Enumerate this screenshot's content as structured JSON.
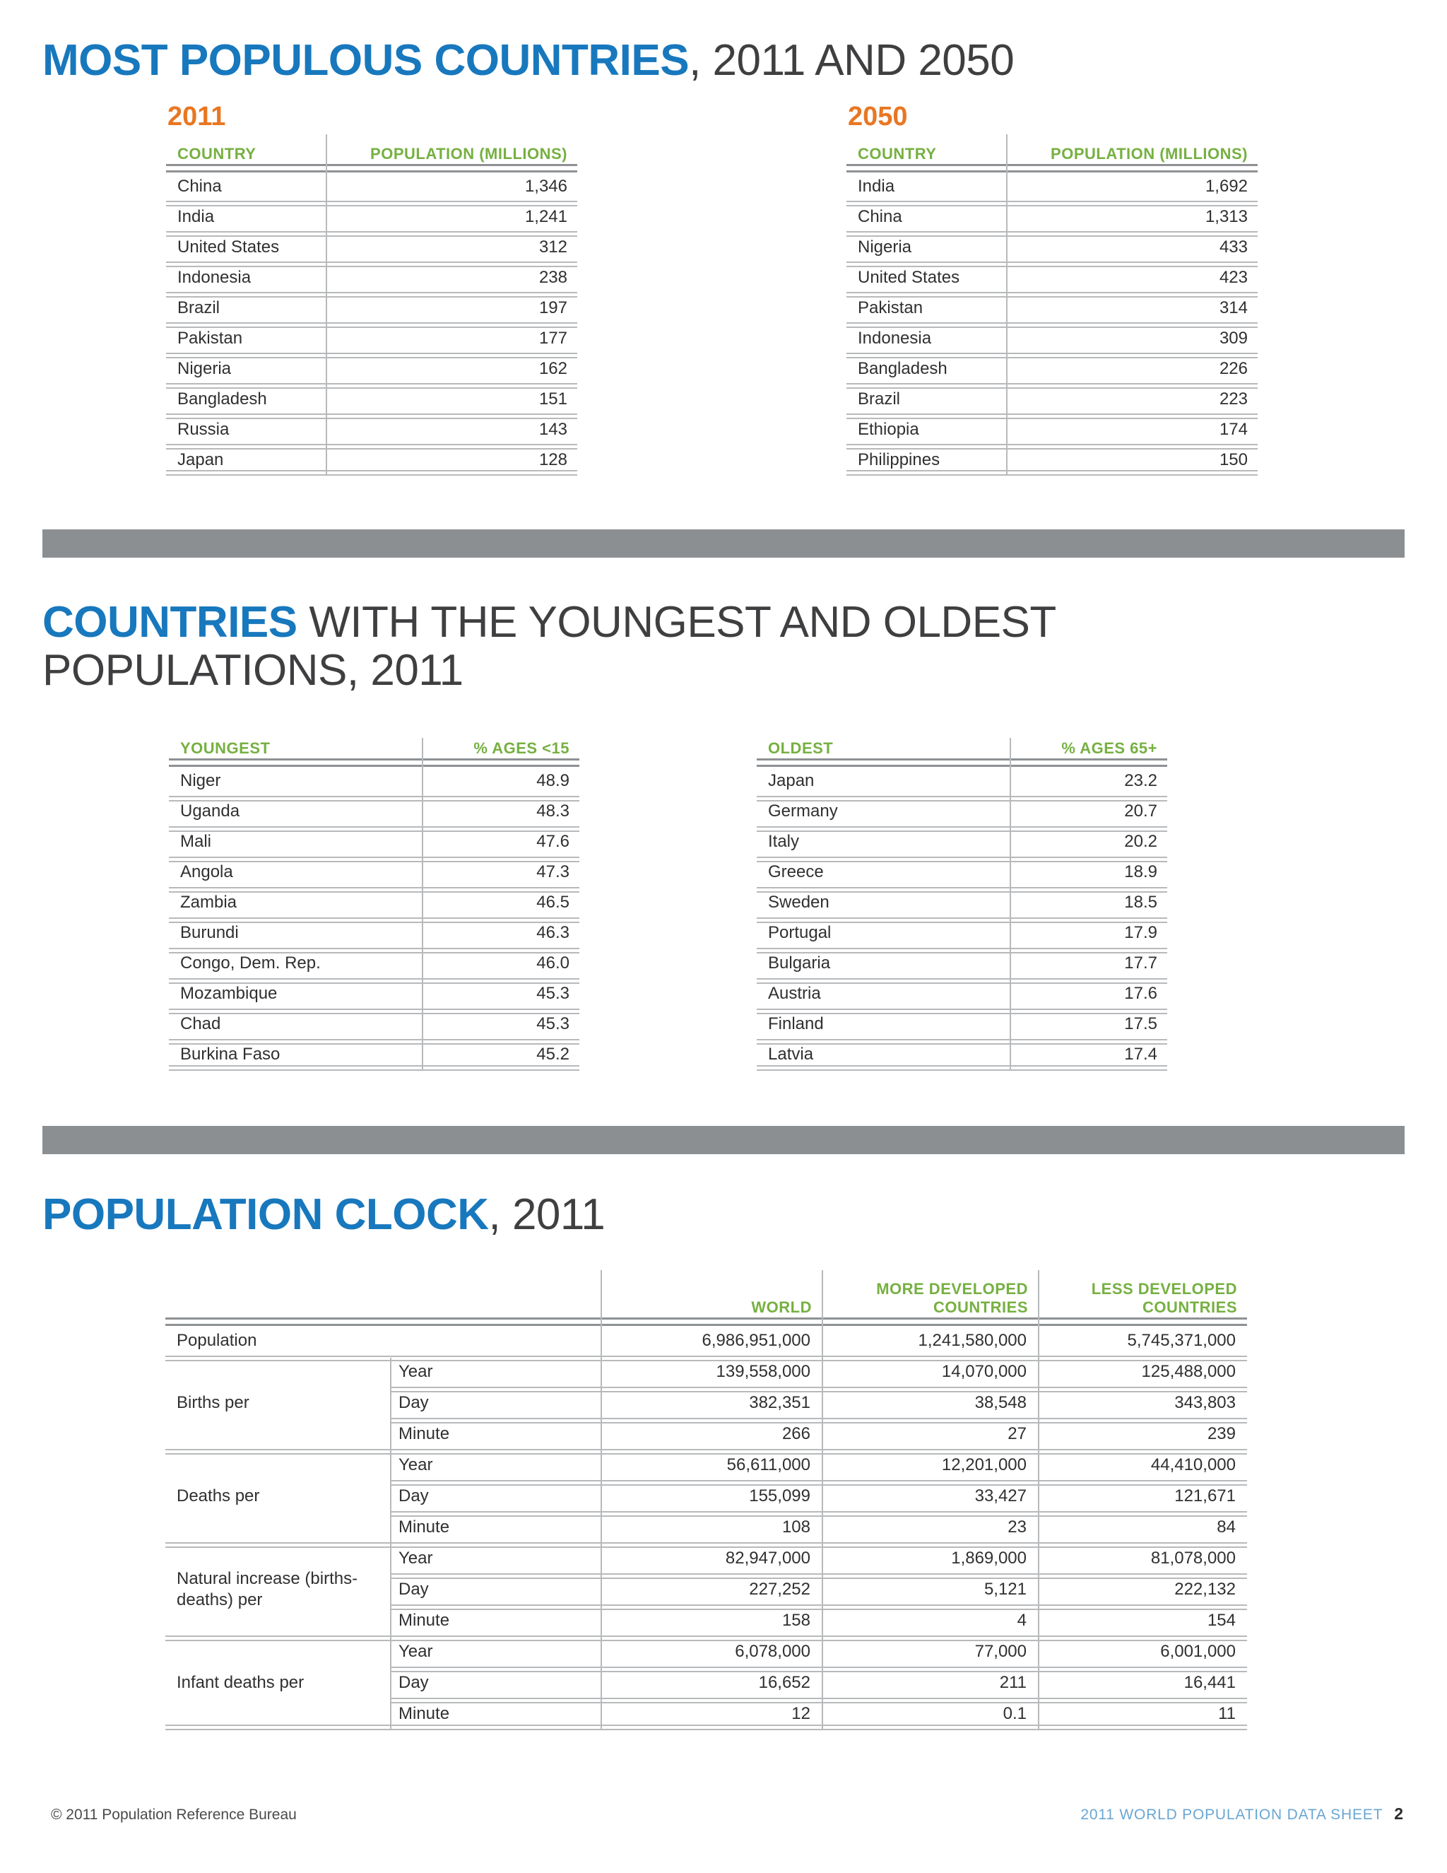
{
  "colors": {
    "title_blue": "#1878bd",
    "accent_orange": "#e87722",
    "header_green": "#76b041",
    "divider_gray": "#8b8f92",
    "footer_blue": "#6aa7d3"
  },
  "section1": {
    "title_strong": "MOST POPULOUS COUNTRIES",
    "title_rest": ", 2011 AND 2050",
    "tables": [
      {
        "year": "2011",
        "col1": "COUNTRY",
        "col2": "POPULATION (MILLIONS)",
        "rows": [
          [
            "China",
            "1,346"
          ],
          [
            "India",
            "1,241"
          ],
          [
            "United States",
            "312"
          ],
          [
            "Indonesia",
            "238"
          ],
          [
            "Brazil",
            "197"
          ],
          [
            "Pakistan",
            "177"
          ],
          [
            "Nigeria",
            "162"
          ],
          [
            "Bangladesh",
            "151"
          ],
          [
            "Russia",
            "143"
          ],
          [
            "Japan",
            "128"
          ]
        ]
      },
      {
        "year": "2050",
        "col1": "COUNTRY",
        "col2": "POPULATION (MILLIONS)",
        "rows": [
          [
            "India",
            "1,692"
          ],
          [
            "China",
            "1,313"
          ],
          [
            "Nigeria",
            "433"
          ],
          [
            "United States",
            "423"
          ],
          [
            "Pakistan",
            "314"
          ],
          [
            "Indonesia",
            "309"
          ],
          [
            "Bangladesh",
            "226"
          ],
          [
            "Brazil",
            "223"
          ],
          [
            "Ethiopia",
            "174"
          ],
          [
            "Philippines",
            "150"
          ]
        ]
      }
    ]
  },
  "section2": {
    "title_strong": "COUNTRIES",
    "title_rest": " WITH THE YOUNGEST AND OLDEST POPULATIONS, 2011",
    "tables": [
      {
        "col1": "YOUNGEST",
        "col2": "% AGES <15",
        "rows": [
          [
            "Niger",
            "48.9"
          ],
          [
            "Uganda",
            "48.3"
          ],
          [
            "Mali",
            "47.6"
          ],
          [
            "Angola",
            "47.3"
          ],
          [
            "Zambia",
            "46.5"
          ],
          [
            "Burundi",
            "46.3"
          ],
          [
            "Congo, Dem. Rep.",
            "46.0"
          ],
          [
            "Mozambique",
            "45.3"
          ],
          [
            "Chad",
            "45.3"
          ],
          [
            "Burkina Faso",
            "45.2"
          ]
        ]
      },
      {
        "col1": "OLDEST",
        "col2": "% AGES 65+",
        "rows": [
          [
            "Japan",
            "23.2"
          ],
          [
            "Germany",
            "20.7"
          ],
          [
            "Italy",
            "20.2"
          ],
          [
            "Greece",
            "18.9"
          ],
          [
            "Sweden",
            "18.5"
          ],
          [
            "Portugal",
            "17.9"
          ],
          [
            "Bulgaria",
            "17.7"
          ],
          [
            "Austria",
            "17.6"
          ],
          [
            "Finland",
            "17.5"
          ],
          [
            "Latvia",
            "17.4"
          ]
        ]
      }
    ]
  },
  "section3": {
    "title_strong": "POPULATION CLOCK",
    "title_rest": ", 2011",
    "headers": [
      "WORLD",
      "MORE DEVELOPED\nCOUNTRIES",
      "LESS DEVELOPED\nCOUNTRIES"
    ],
    "population_row": {
      "label": "Population",
      "values": [
        "6,986,951,000",
        "1,241,580,000",
        "5,745,371,000"
      ]
    },
    "groups": [
      {
        "label": "Births per",
        "rows": [
          {
            "sub": "Year",
            "values": [
              "139,558,000",
              "14,070,000",
              "125,488,000"
            ]
          },
          {
            "sub": "Day",
            "values": [
              "382,351",
              "38,548",
              "343,803"
            ]
          },
          {
            "sub": "Minute",
            "values": [
              "266",
              "27",
              "239"
            ]
          }
        ]
      },
      {
        "label": "Deaths per",
        "rows": [
          {
            "sub": "Year",
            "values": [
              "56,611,000",
              "12,201,000",
              "44,410,000"
            ]
          },
          {
            "sub": "Day",
            "values": [
              "155,099",
              "33,427",
              "121,671"
            ]
          },
          {
            "sub": "Minute",
            "values": [
              "108",
              "23",
              "84"
            ]
          }
        ]
      },
      {
        "label": "Natural increase (births-deaths) per",
        "rows": [
          {
            "sub": "Year",
            "values": [
              "82,947,000",
              "1,869,000",
              "81,078,000"
            ]
          },
          {
            "sub": "Day",
            "values": [
              "227,252",
              "5,121",
              "222,132"
            ]
          },
          {
            "sub": "Minute",
            "values": [
              "158",
              "4",
              "154"
            ]
          }
        ]
      },
      {
        "label": "Infant deaths per",
        "rows": [
          {
            "sub": "Year",
            "values": [
              "6,078,000",
              "77,000",
              "6,001,000"
            ]
          },
          {
            "sub": "Day",
            "values": [
              "16,652",
              "211",
              "16,441"
            ]
          },
          {
            "sub": "Minute",
            "values": [
              "12",
              "0.1",
              "11"
            ]
          }
        ]
      }
    ]
  },
  "footer": {
    "left": "© 2011 Population Reference Bureau",
    "right": "2011 WORLD POPULATION DATA SHEET",
    "page": "2"
  }
}
